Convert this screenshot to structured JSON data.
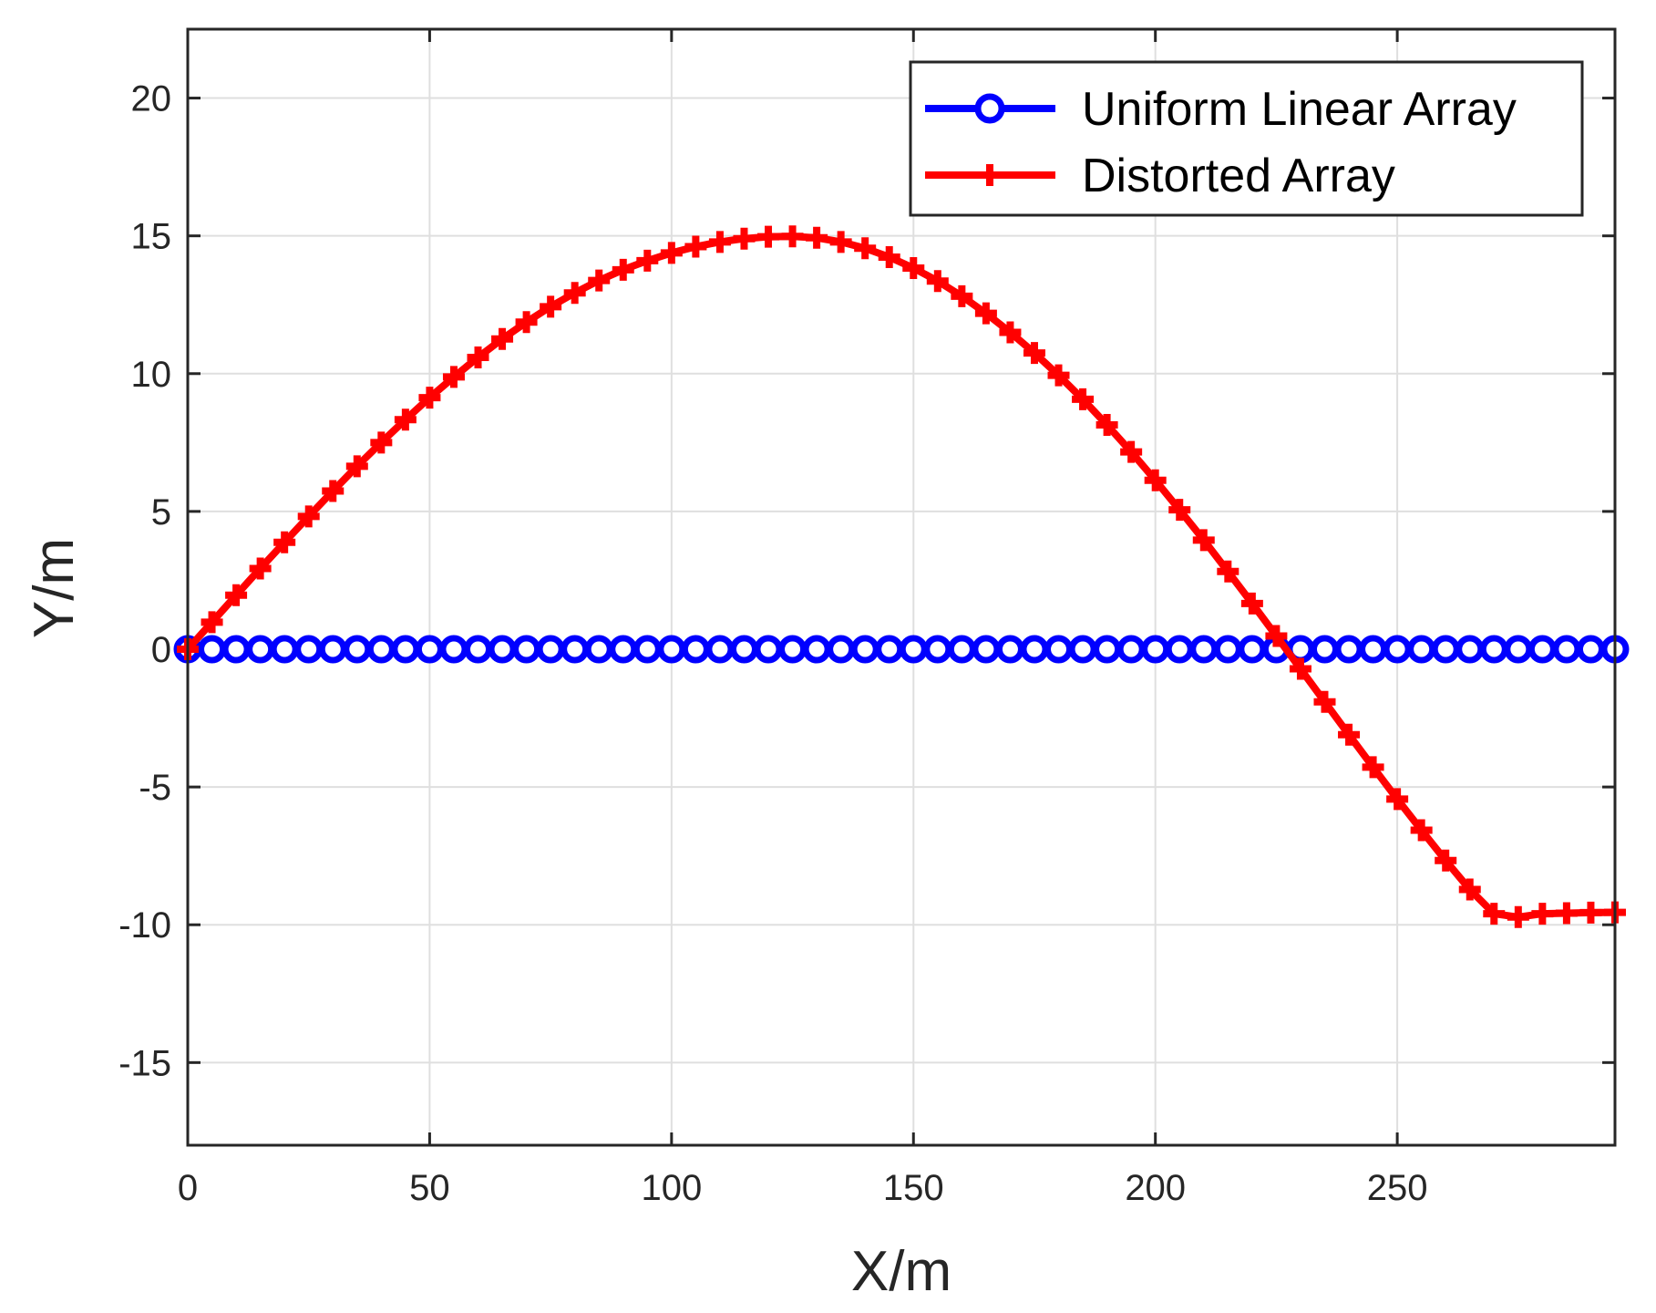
{
  "chart_data": {
    "type": "line",
    "xlabel": "X/m",
    "ylabel": "Y/m",
    "xlim": [
      0,
      295
    ],
    "ylim": [
      -18,
      22.5
    ],
    "xticks": [
      0,
      50,
      100,
      150,
      200,
      250
    ],
    "yticks": [
      -15,
      -10,
      -5,
      0,
      5,
      10,
      15,
      20
    ],
    "xtick_labels": [
      "0",
      "50",
      "100",
      "150",
      "200",
      "250"
    ],
    "ytick_labels": [
      "-15",
      "-10",
      "-5",
      "0",
      "5",
      "10",
      "15",
      "20"
    ],
    "grid": true,
    "legend_position": "top-right",
    "x": [
      0,
      5,
      10,
      15,
      20,
      25,
      30,
      35,
      40,
      45,
      50,
      55,
      60,
      65,
      70,
      75,
      80,
      85,
      90,
      95,
      100,
      105,
      110,
      115,
      120,
      125,
      130,
      135,
      140,
      145,
      150,
      155,
      160,
      165,
      170,
      175,
      180,
      185,
      190,
      195,
      200,
      205,
      210,
      215,
      220,
      225,
      230,
      235,
      240,
      245,
      250,
      255,
      260,
      265,
      270,
      275,
      280,
      285,
      290,
      295
    ],
    "series": [
      {
        "name": "Uniform Linear Array",
        "color": "#0000ff",
        "marker": "circle",
        "values": [
          0,
          0,
          0,
          0,
          0,
          0,
          0,
          0,
          0,
          0,
          0,
          0,
          0,
          0,
          0,
          0,
          0,
          0,
          0,
          0,
          0,
          0,
          0,
          0,
          0,
          0,
          0,
          0,
          0,
          0,
          0,
          0,
          0,
          0,
          0,
          0,
          0,
          0,
          0,
          0,
          0,
          0,
          0,
          0,
          0,
          0,
          0,
          0,
          0,
          0,
          0,
          0,
          0,
          0,
          0,
          0,
          0,
          0,
          0,
          0
        ]
      },
      {
        "name": "Distorted Array",
        "color": "#ff0000",
        "marker": "plus",
        "values": [
          0,
          0.98,
          1.96,
          2.93,
          3.88,
          4.82,
          5.74,
          6.64,
          7.5,
          8.33,
          9.13,
          9.88,
          10.59,
          11.26,
          11.87,
          12.43,
          12.93,
          13.38,
          13.77,
          14.1,
          14.38,
          14.61,
          14.78,
          14.9,
          14.97,
          14.98,
          14.93,
          14.78,
          14.55,
          14.23,
          13.83,
          13.36,
          12.81,
          12.19,
          11.5,
          10.75,
          9.94,
          9.07,
          8.14,
          7.16,
          6.13,
          5.06,
          3.96,
          2.82,
          1.66,
          0.48,
          -0.71,
          -1.91,
          -3.1,
          -4.28,
          -5.44,
          -6.57,
          -7.67,
          -8.72,
          -9.6,
          -9.72,
          -9.6,
          -9.58,
          -9.56,
          -9.55
        ]
      }
    ]
  }
}
